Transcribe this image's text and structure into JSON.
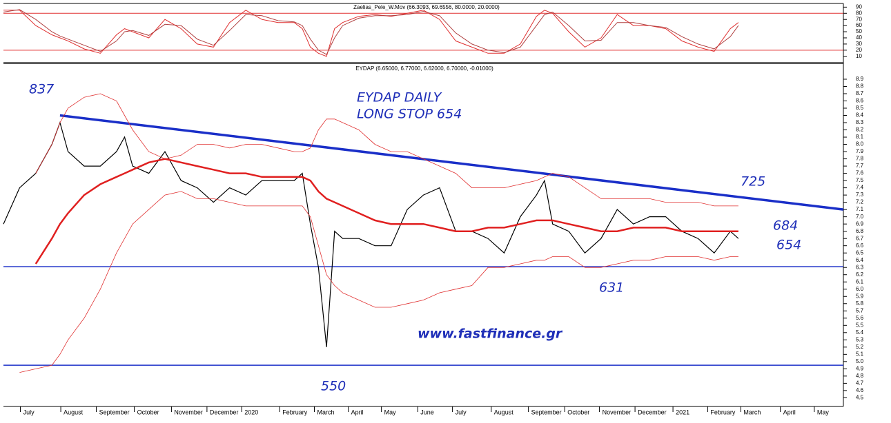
{
  "chart_data": [
    {
      "type": "line",
      "title": "Zaelias_Pele_W.Mov (66.3093, 69.6556, 80.0000, 20.0000)",
      "x": [
        0,
        2,
        4,
        6,
        7,
        8,
        10,
        12,
        14,
        15,
        16,
        18,
        20,
        22,
        24,
        26,
        28,
        30,
        32,
        34,
        36,
        37,
        38,
        39,
        40,
        41,
        42,
        44,
        46,
        48,
        50,
        52,
        54,
        56,
        58,
        60,
        62,
        64,
        66,
        67,
        68,
        70,
        72,
        74,
        76,
        78,
        80,
        82,
        84,
        86,
        88,
        90,
        91
      ],
      "series": [
        {
          "color": "#e03030",
          "values": [
            85,
            85,
            60,
            45,
            40,
            35,
            22,
            15,
            45,
            55,
            50,
            40,
            70,
            55,
            30,
            25,
            65,
            85,
            70,
            65,
            65,
            55,
            25,
            15,
            10,
            55,
            65,
            75,
            78,
            75,
            80,
            85,
            70,
            35,
            25,
            15,
            15,
            30,
            75,
            85,
            80,
            50,
            25,
            40,
            78,
            60,
            60,
            55,
            35,
            25,
            18,
            55,
            65
          ]
        },
        {
          "color": "#b04040",
          "values": [
            82,
            86,
            70,
            50,
            43,
            38,
            28,
            18,
            35,
            50,
            52,
            44,
            62,
            60,
            38,
            28,
            52,
            78,
            76,
            68,
            66,
            60,
            38,
            20,
            13,
            40,
            60,
            72,
            76,
            76,
            78,
            83,
            76,
            48,
            30,
            20,
            16,
            25,
            60,
            78,
            82,
            60,
            35,
            36,
            65,
            65,
            60,
            57,
            42,
            30,
            22,
            42,
            60
          ]
        }
      ],
      "hlines": [
        80,
        20
      ],
      "hline_color": "#e03030",
      "xlim": [
        0,
        104
      ],
      "ylim": [
        3,
        96
      ],
      "yticks": [
        10,
        20,
        30,
        40,
        50,
        60,
        70,
        80,
        90
      ]
    },
    {
      "type": "line",
      "title": "EYDAP (6.65000, 6.77000, 6.62000, 6.70000, -0.01000)",
      "x": [
        0,
        2,
        4,
        6,
        7,
        8,
        10,
        12,
        14,
        15,
        16,
        18,
        20,
        22,
        24,
        26,
        28,
        30,
        32,
        34,
        36,
        37,
        38,
        39,
        40,
        41,
        42,
        44,
        46,
        48,
        50,
        52,
        54,
        56,
        58,
        60,
        62,
        64,
        66,
        67,
        68,
        70,
        72,
        74,
        76,
        78,
        80,
        82,
        84,
        86,
        88,
        90,
        91
      ],
      "series": [
        {
          "color": "#000000",
          "width": 1.2,
          "values": [
            6.9,
            7.4,
            7.6,
            8.0,
            8.3,
            7.9,
            7.7,
            7.7,
            7.9,
            8.1,
            7.7,
            7.6,
            7.9,
            7.5,
            7.4,
            7.2,
            7.4,
            7.3,
            7.5,
            7.5,
            7.5,
            7.6,
            6.9,
            6.3,
            5.2,
            6.8,
            6.7,
            6.7,
            6.6,
            6.6,
            7.1,
            7.3,
            7.4,
            6.8,
            6.8,
            6.7,
            6.5,
            7.0,
            7.3,
            7.5,
            6.9,
            6.8,
            6.5,
            6.7,
            7.1,
            6.9,
            7.0,
            7.0,
            6.8,
            6.7,
            6.5,
            6.8,
            6.7
          ]
        },
        {
          "color": "#e02020",
          "width": 2.5,
          "values": [
            null,
            null,
            6.35,
            6.7,
            6.9,
            7.05,
            7.3,
            7.45,
            7.55,
            7.6,
            7.65,
            7.75,
            7.8,
            7.75,
            7.7,
            7.65,
            7.6,
            7.6,
            7.55,
            7.55,
            7.55,
            7.55,
            7.5,
            7.35,
            7.25,
            7.2,
            7.15,
            7.05,
            6.95,
            6.9,
            6.9,
            6.9,
            6.85,
            6.8,
            6.8,
            6.85,
            6.85,
            6.9,
            6.95,
            6.95,
            6.95,
            6.9,
            6.85,
            6.8,
            6.8,
            6.85,
            6.85,
            6.85,
            6.8,
            6.8,
            6.8,
            6.8,
            6.8
          ]
        },
        {
          "color": "#e03030",
          "width": 0.8,
          "values": [
            null,
            null,
            7.6,
            8.0,
            8.3,
            8.5,
            8.65,
            8.7,
            8.6,
            8.4,
            8.2,
            7.9,
            7.8,
            7.85,
            8.0,
            8.0,
            7.95,
            8.0,
            8.0,
            7.95,
            7.9,
            7.9,
            7.95,
            8.2,
            8.35,
            8.35,
            8.3,
            8.2,
            8.0,
            7.9,
            7.9,
            7.8,
            7.7,
            7.6,
            7.4,
            7.4,
            7.4,
            7.45,
            7.5,
            7.55,
            7.6,
            7.55,
            7.4,
            7.25,
            7.25,
            7.25,
            7.25,
            7.2,
            7.2,
            7.2,
            7.15,
            7.15,
            7.15
          ]
        },
        {
          "color": "#e03030",
          "width": 0.8,
          "values": [
            null,
            4.85,
            4.9,
            4.95,
            5.1,
            5.3,
            5.6,
            6.0,
            6.5,
            6.7,
            6.9,
            7.1,
            7.3,
            7.35,
            7.25,
            7.25,
            7.2,
            7.15,
            7.15,
            7.15,
            7.15,
            7.15,
            7.0,
            6.6,
            6.2,
            6.05,
            5.95,
            5.85,
            5.75,
            5.75,
            5.8,
            5.85,
            5.95,
            6.0,
            6.05,
            6.3,
            6.3,
            6.35,
            6.4,
            6.4,
            6.45,
            6.45,
            6.3,
            6.3,
            6.35,
            6.4,
            6.4,
            6.45,
            6.45,
            6.45,
            6.4,
            6.45,
            6.45
          ]
        }
      ],
      "trendline": {
        "x": [
          7,
          104
        ],
        "y": [
          8.4,
          7.1
        ],
        "color": "#1a2fc8"
      },
      "hlines": [
        6.31,
        4.95
      ],
      "hline_color": "#1a2fc8",
      "annotations": [
        "837",
        "EYDAP DAILY",
        "LONG STOP 654",
        "725",
        "684",
        "654",
        "631",
        "550",
        "www.fastfinance.gr"
      ],
      "xlim": [
        0,
        104
      ],
      "ylim": [
        4.38,
        9.09
      ],
      "xticks": [
        {
          "value": 2.1,
          "label": "July"
        },
        {
          "value": 7.1,
          "label": "August"
        },
        {
          "value": 11.5,
          "label": "September"
        },
        {
          "value": 16.2,
          "label": "October"
        },
        {
          "value": 20.8,
          "label": "November"
        },
        {
          "value": 25.2,
          "label": "December"
        },
        {
          "value": 29.5,
          "label": "2020"
        },
        {
          "value": 34.2,
          "label": "February"
        },
        {
          "value": 38.5,
          "label": "March"
        },
        {
          "value": 42.7,
          "label": "April"
        },
        {
          "value": 46.8,
          "label": "May"
        },
        {
          "value": 51.3,
          "label": "June"
        },
        {
          "value": 55.6,
          "label": "July"
        },
        {
          "value": 60.4,
          "label": "August"
        },
        {
          "value": 65,
          "label": "September"
        },
        {
          "value": 69.5,
          "label": "October"
        },
        {
          "value": 73.8,
          "label": "November"
        },
        {
          "value": 78.2,
          "label": "December"
        },
        {
          "value": 82.9,
          "label": "2021"
        },
        {
          "value": 87.2,
          "label": "February"
        },
        {
          "value": 91.3,
          "label": "March"
        },
        {
          "value": 96.2,
          "label": "April"
        },
        {
          "value": 100.4,
          "label": "May"
        }
      ],
      "yticks": [
        4.5,
        4.6,
        4.7,
        4.8,
        4.9,
        {
          "value": 5,
          "label": "5.0"
        },
        5.1,
        5.2,
        5.3,
        5.4,
        5.5,
        5.6,
        5.7,
        5.8,
        5.9,
        {
          "value": 6,
          "label": "6.0"
        },
        6.1,
        6.2,
        6.3,
        6.4,
        6.5,
        6.6,
        6.7,
        6.8,
        6.9,
        {
          "value": 7,
          "label": "7.0"
        },
        7.1,
        7.2,
        7.3,
        7.4,
        7.5,
        7.6,
        7.7,
        7.8,
        7.9,
        {
          "value": 8,
          "label": "8.0"
        },
        8.1,
        8.2,
        8.3,
        8.4,
        8.5,
        8.6,
        8.7,
        8.8,
        8.9
      ]
    }
  ]
}
